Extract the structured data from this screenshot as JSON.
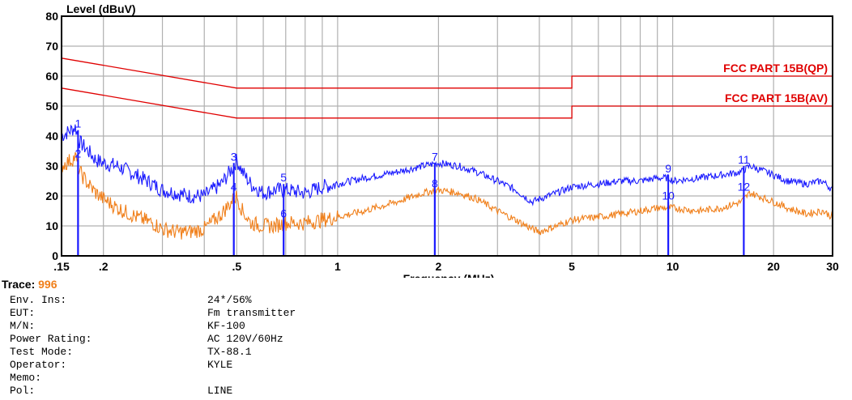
{
  "chart_data": {
    "type": "line",
    "ylabel": "Level (dBuV)",
    "xlabel": "Frequency (MHz)",
    "x_scale": "log",
    "xlim": [
      0.15,
      30
    ],
    "ylim": [
      0,
      80
    ],
    "y_ticks": [
      "0",
      "10",
      "20",
      "30",
      "40",
      "50",
      "60",
      "70",
      "80"
    ],
    "x_ticks": [
      {
        "value": 0.15,
        "label": ".15"
      },
      {
        "value": 0.2,
        "label": ".2"
      },
      {
        "value": 0.5,
        "label": ".5"
      },
      {
        "value": 1,
        "label": "1"
      },
      {
        "value": 2,
        "label": "2"
      },
      {
        "value": 5,
        "label": "5"
      },
      {
        "value": 10,
        "label": "10"
      },
      {
        "value": 20,
        "label": "20"
      },
      {
        "value": 30,
        "label": "30"
      }
    ],
    "grid": true,
    "limit_lines": [
      {
        "name": "FCC PART 15B(QP)",
        "color": "#e00000",
        "points": [
          [
            0.15,
            66
          ],
          [
            0.5,
            56
          ],
          [
            5,
            56
          ],
          [
            5,
            60
          ],
          [
            30,
            60
          ]
        ]
      },
      {
        "name": "FCC PART 15B(AV)",
        "color": "#e00000",
        "points": [
          [
            0.15,
            56
          ],
          [
            0.5,
            46
          ],
          [
            5,
            46
          ],
          [
            5,
            50
          ],
          [
            30,
            50
          ]
        ]
      }
    ],
    "series": [
      {
        "color": "#1a1aff",
        "x": [
          0.15,
          0.16,
          0.165,
          0.17,
          0.18,
          0.19,
          0.2,
          0.22,
          0.25,
          0.28,
          0.3,
          0.33,
          0.36,
          0.4,
          0.45,
          0.49,
          0.5,
          0.52,
          0.55,
          0.6,
          0.65,
          0.7,
          0.8,
          0.9,
          1.0,
          1.2,
          1.5,
          1.8,
          2.0,
          2.3,
          2.6,
          3.0,
          3.4,
          3.8,
          4.0,
          4.5,
          5.0,
          6.0,
          7.0,
          8.0,
          9.0,
          9.8,
          10,
          12,
          14,
          16,
          17,
          18,
          20,
          22,
          25,
          28,
          30
        ],
        "y": [
          40,
          42,
          43,
          38,
          35,
          32,
          31,
          30,
          27,
          24,
          22,
          21,
          20,
          20,
          24,
          30,
          32,
          28,
          24,
          21,
          22,
          22,
          21,
          23,
          24,
          26,
          28,
          30,
          31,
          30,
          28,
          25,
          22,
          18,
          19,
          21,
          23,
          24,
          25,
          25,
          26,
          26,
          25,
          26,
          27,
          28,
          30,
          29,
          27,
          25,
          24,
          25,
          22
        ]
      },
      {
        "color": "#f07f1a",
        "x": [
          0.15,
          0.16,
          0.165,
          0.17,
          0.18,
          0.19,
          0.2,
          0.22,
          0.25,
          0.28,
          0.3,
          0.33,
          0.36,
          0.4,
          0.45,
          0.49,
          0.5,
          0.52,
          0.55,
          0.6,
          0.65,
          0.7,
          0.8,
          0.9,
          1.0,
          1.2,
          1.5,
          1.8,
          2.0,
          2.3,
          2.6,
          3.0,
          3.4,
          3.8,
          4.0,
          4.5,
          5.0,
          6.0,
          7.0,
          8.0,
          9.0,
          9.8,
          10,
          12,
          14,
          16,
          17,
          18,
          20,
          22,
          25,
          28,
          30
        ],
        "y": [
          30,
          32,
          33,
          28,
          24,
          21,
          19,
          16,
          13,
          11,
          9,
          8,
          8,
          9,
          14,
          19,
          20,
          15,
          11,
          10,
          10,
          11,
          11,
          12,
          13,
          15,
          18,
          21,
          22,
          21,
          19,
          15,
          12,
          9,
          8,
          10,
          12,
          13,
          14,
          15,
          16,
          16,
          16,
          15,
          16,
          18,
          21,
          20,
          18,
          16,
          14,
          15,
          13
        ]
      }
    ],
    "markers": [
      {
        "label": "1",
        "x": 0.168,
        "y": 42
      },
      {
        "label": "2",
        "x": 0.168,
        "y": 32
      },
      {
        "label": "3",
        "x": 0.49,
        "y": 31
      },
      {
        "label": "4",
        "x": 0.49,
        "y": 21
      },
      {
        "label": "5",
        "x": 0.69,
        "y": 24
      },
      {
        "label": "6",
        "x": 0.69,
        "y": 12
      },
      {
        "label": "7",
        "x": 1.95,
        "y": 31
      },
      {
        "label": "8",
        "x": 1.95,
        "y": 22
      },
      {
        "label": "9",
        "x": 9.7,
        "y": 27
      },
      {
        "label": "10",
        "x": 9.7,
        "y": 18
      },
      {
        "label": "11",
        "x": 16.3,
        "y": 30
      },
      {
        "label": "12",
        "x": 16.3,
        "y": 21
      }
    ]
  },
  "info": {
    "trace_label": "Trace:",
    "trace_value": "996",
    "rows": [
      {
        "key": "Env. Ins:",
        "value": "24*/56%"
      },
      {
        "key": "EUT:",
        "value": "Fm transmitter"
      },
      {
        "key": "M/N:",
        "value": "KF-100"
      },
      {
        "key": "Power Rating:",
        "value": "AC 120V/60Hz"
      },
      {
        "key": "Test Mode:",
        "value": "TX-88.1"
      },
      {
        "key": "Operator:",
        "value": "KYLE"
      },
      {
        "key": "Memo:",
        "value": ""
      },
      {
        "key": "Pol:",
        "value": "LINE"
      }
    ]
  }
}
